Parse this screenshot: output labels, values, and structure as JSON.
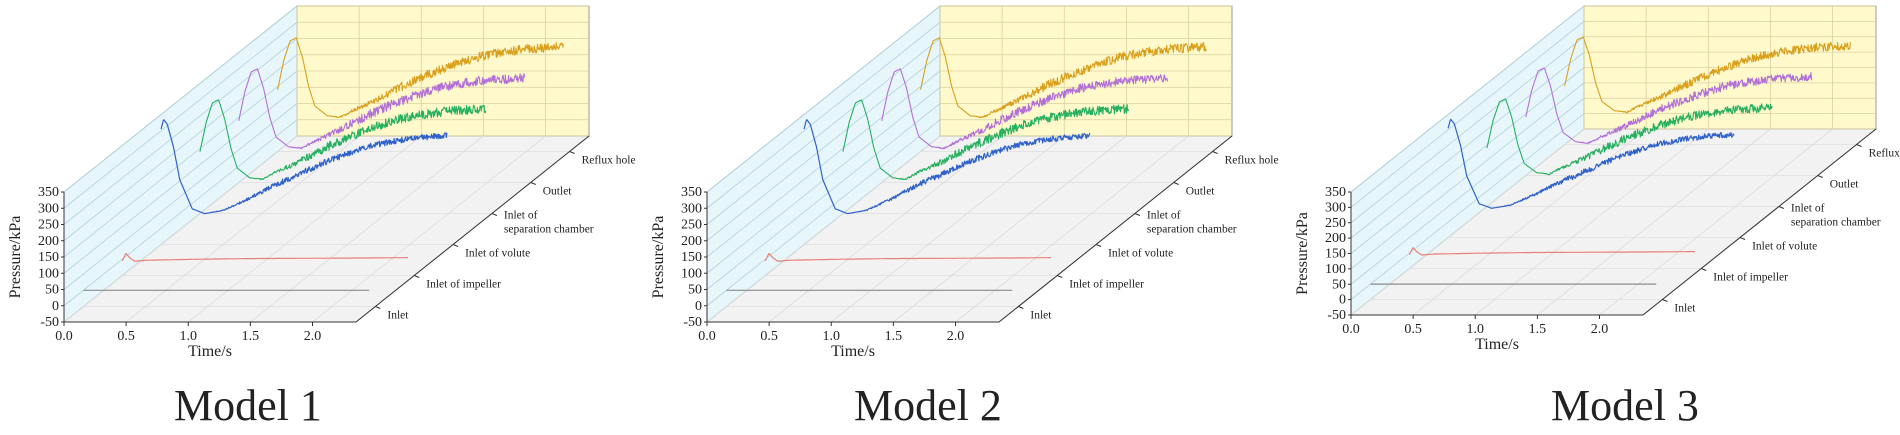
{
  "figure": {
    "colors": {
      "inlet": "#8c8c8c",
      "inlet_of_impeller": "#e8807a",
      "inlet_of_volute": "#2f62c8",
      "inlet_of_separation_chamber": "#27b060",
      "outlet": "#b270d6",
      "reflux_hole": "#d9a01c",
      "back_wall": "#fff9cc",
      "side_wall": "#e6f6fb",
      "floor": "#f2f2f2",
      "grid": "#b4d2da"
    }
  },
  "chart_data": [
    {
      "type": "line",
      "title": "Model 1",
      "xlabel": "Time/s",
      "ylabel": "Pressure/kPa",
      "xlim": [
        0,
        2.35
      ],
      "ylim": [
        -50,
        350
      ],
      "x_ticks": [
        "0.0",
        "0.5",
        "1.0",
        "1.5",
        "2.0"
      ],
      "y_ticks": [
        "-50",
        "0",
        "50",
        "100",
        "150",
        "200",
        "250",
        "300",
        "350"
      ],
      "series": [
        {
          "name": "Inlet",
          "x": [
            0.0,
            0.5,
            1.0,
            1.5,
            2.0,
            2.3
          ],
          "y": [
            0,
            0,
            0,
            0,
            0,
            0
          ],
          "noise": 0
        },
        {
          "name": "Inlet of impeller",
          "x": [
            0.0,
            0.03,
            0.06,
            0.1,
            0.2,
            0.6,
            1.0,
            1.5,
            2.0,
            2.3
          ],
          "y": [
            -5,
            18,
            5,
            -6,
            -3,
            0,
            2,
            3,
            4,
            5
          ],
          "noise": 0
        },
        {
          "name": "Inlet of volute",
          "x": [
            0.0,
            0.02,
            0.05,
            0.1,
            0.15,
            0.25,
            0.35,
            0.5,
            0.7,
            0.9,
            1.1,
            1.3,
            1.5,
            1.7,
            1.9,
            2.1,
            2.3
          ],
          "y": [
            305,
            335,
            320,
            250,
            150,
            60,
            45,
            55,
            90,
            130,
            165,
            200,
            230,
            255,
            270,
            280,
            285
          ],
          "noise": 9
        },
        {
          "name": "Inlet of separation chamber",
          "x": [
            0.0,
            0.05,
            0.1,
            0.15,
            0.2,
            0.25,
            0.3,
            0.4,
            0.5,
            0.6,
            0.8,
            1.0,
            1.2,
            1.4,
            1.6,
            1.8,
            2.0,
            2.2,
            2.3
          ],
          "y": [
            140,
            230,
            290,
            300,
            240,
            150,
            90,
            60,
            55,
            75,
            110,
            150,
            185,
            215,
            240,
            255,
            265,
            270,
            272
          ],
          "noise": 14
        },
        {
          "name": "Outlet",
          "x": [
            0.0,
            0.05,
            0.1,
            0.15,
            0.2,
            0.25,
            0.3,
            0.4,
            0.5,
            0.6,
            0.8,
            1.0,
            1.2,
            1.4,
            1.6,
            1.8,
            2.0,
            2.2,
            2.3
          ],
          "y": [
            140,
            230,
            290,
            300,
            240,
            150,
            90,
            60,
            55,
            75,
            110,
            150,
            185,
            215,
            240,
            255,
            265,
            270,
            272
          ],
          "noise": 14
        },
        {
          "name": "Reflux hole",
          "x": [
            0.0,
            0.05,
            0.1,
            0.15,
            0.2,
            0.25,
            0.3,
            0.4,
            0.5,
            0.6,
            0.8,
            1.0,
            1.2,
            1.4,
            1.6,
            1.8,
            2.0,
            2.2,
            2.3
          ],
          "y": [
            140,
            230,
            290,
            300,
            240,
            150,
            90,
            60,
            55,
            75,
            110,
            150,
            185,
            215,
            240,
            255,
            265,
            270,
            272
          ],
          "noise": 14
        }
      ]
    },
    {
      "type": "line",
      "title": "Model 2",
      "xlabel": "Time/s",
      "ylabel": "Pressure/kPa",
      "xlim": [
        0,
        2.35
      ],
      "ylim": [
        -50,
        350
      ],
      "x_ticks": [
        "0.0",
        "0.5",
        "1.0",
        "1.5",
        "2.0"
      ],
      "y_ticks": [
        "-50",
        "0",
        "50",
        "100",
        "150",
        "200",
        "250",
        "300",
        "350"
      ],
      "series": [
        {
          "name": "Inlet",
          "x": [
            0.0,
            0.5,
            1.0,
            1.5,
            2.0,
            2.3
          ],
          "y": [
            0,
            0,
            0,
            0,
            0,
            0
          ],
          "noise": 0
        },
        {
          "name": "Inlet of impeller",
          "x": [
            0.0,
            0.03,
            0.06,
            0.1,
            0.2,
            0.6,
            1.0,
            1.5,
            2.0,
            2.3
          ],
          "y": [
            -5,
            18,
            5,
            -6,
            -3,
            0,
            2,
            3,
            4,
            5
          ],
          "noise": 0
        },
        {
          "name": "Inlet of volute",
          "x": [
            0.0,
            0.02,
            0.05,
            0.1,
            0.15,
            0.25,
            0.35,
            0.5,
            0.7,
            0.9,
            1.1,
            1.3,
            1.5,
            1.7,
            1.9,
            2.1,
            2.3
          ],
          "y": [
            305,
            335,
            320,
            250,
            150,
            60,
            45,
            55,
            90,
            130,
            165,
            200,
            230,
            255,
            270,
            280,
            285
          ],
          "noise": 9
        },
        {
          "name": "Inlet of separation chamber",
          "x": [
            0.0,
            0.05,
            0.1,
            0.15,
            0.2,
            0.25,
            0.3,
            0.4,
            0.5,
            0.6,
            0.8,
            1.0,
            1.2,
            1.4,
            1.6,
            1.8,
            2.0,
            2.2,
            2.3
          ],
          "y": [
            140,
            230,
            290,
            300,
            240,
            150,
            90,
            60,
            55,
            75,
            110,
            150,
            185,
            215,
            240,
            255,
            265,
            270,
            272
          ],
          "noise": 14
        },
        {
          "name": "Outlet",
          "x": [
            0.0,
            0.05,
            0.1,
            0.15,
            0.2,
            0.25,
            0.3,
            0.4,
            0.5,
            0.6,
            0.8,
            1.0,
            1.2,
            1.4,
            1.6,
            1.8,
            2.0,
            2.2,
            2.3
          ],
          "y": [
            140,
            230,
            290,
            300,
            240,
            150,
            90,
            60,
            55,
            75,
            110,
            150,
            185,
            215,
            240,
            255,
            265,
            270,
            272
          ],
          "noise": 14
        },
        {
          "name": "Reflux hole",
          "x": [
            0.0,
            0.05,
            0.1,
            0.15,
            0.2,
            0.25,
            0.3,
            0.4,
            0.5,
            0.6,
            0.8,
            1.0,
            1.2,
            1.4,
            1.6,
            1.8,
            2.0,
            2.2,
            2.3
          ],
          "y": [
            140,
            230,
            290,
            300,
            240,
            150,
            90,
            60,
            55,
            75,
            110,
            150,
            185,
            215,
            240,
            255,
            265,
            270,
            272
          ],
          "noise": 14
        }
      ]
    },
    {
      "type": "line",
      "title": "Model 3",
      "xlabel": "Time/s",
      "ylabel": "Pressure/kPa",
      "xlim": [
        0,
        2.35
      ],
      "ylim": [
        -50,
        350
      ],
      "x_ticks": [
        "0.0",
        "0.5",
        "1.0",
        "1.5",
        "2.0"
      ],
      "y_ticks": [
        "-50",
        "0",
        "50",
        "100",
        "150",
        "200",
        "250",
        "300",
        "350"
      ],
      "series": [
        {
          "name": "Inlet",
          "x": [
            0.0,
            0.5,
            1.0,
            1.5,
            2.0,
            2.3
          ],
          "y": [
            0,
            0,
            0,
            0,
            0,
            0
          ],
          "noise": 0
        },
        {
          "name": "Inlet of impeller",
          "x": [
            0.0,
            0.03,
            0.06,
            0.1,
            0.2,
            0.6,
            1.0,
            1.5,
            2.0,
            2.3
          ],
          "y": [
            -5,
            18,
            5,
            -6,
            -3,
            0,
            2,
            3,
            4,
            5
          ],
          "noise": 0
        },
        {
          "name": "Inlet of volute",
          "x": [
            0.0,
            0.02,
            0.05,
            0.1,
            0.15,
            0.25,
            0.35,
            0.5,
            0.7,
            0.9,
            1.1,
            1.3,
            1.5,
            1.7,
            1.9,
            2.1,
            2.3
          ],
          "y": [
            305,
            335,
            320,
            250,
            150,
            60,
            45,
            55,
            90,
            130,
            165,
            200,
            230,
            255,
            270,
            280,
            285
          ],
          "noise": 9
        },
        {
          "name": "Inlet of separation chamber",
          "x": [
            0.0,
            0.05,
            0.1,
            0.15,
            0.2,
            0.25,
            0.3,
            0.4,
            0.5,
            0.6,
            0.8,
            1.0,
            1.2,
            1.4,
            1.6,
            1.8,
            2.0,
            2.2,
            2.3
          ],
          "y": [
            140,
            230,
            290,
            300,
            240,
            150,
            90,
            60,
            55,
            75,
            110,
            150,
            185,
            215,
            240,
            255,
            265,
            270,
            272
          ],
          "noise": 14
        },
        {
          "name": "Outlet",
          "x": [
            0.0,
            0.05,
            0.1,
            0.15,
            0.2,
            0.25,
            0.3,
            0.4,
            0.5,
            0.6,
            0.8,
            1.0,
            1.2,
            1.4,
            1.6,
            1.8,
            2.0,
            2.2,
            2.3
          ],
          "y": [
            140,
            230,
            290,
            300,
            240,
            150,
            90,
            60,
            55,
            75,
            110,
            150,
            185,
            215,
            240,
            255,
            265,
            270,
            272
          ],
          "noise": 14
        },
        {
          "name": "Reflux hole",
          "x": [
            0.0,
            0.05,
            0.1,
            0.15,
            0.2,
            0.25,
            0.3,
            0.4,
            0.5,
            0.6,
            0.8,
            1.0,
            1.2,
            1.4,
            1.6,
            1.8,
            2.0,
            2.2,
            2.3
          ],
          "y": [
            140,
            230,
            290,
            300,
            240,
            150,
            90,
            60,
            55,
            75,
            110,
            150,
            185,
            215,
            240,
            255,
            265,
            270,
            272
          ],
          "noise": 14
        }
      ]
    }
  ]
}
